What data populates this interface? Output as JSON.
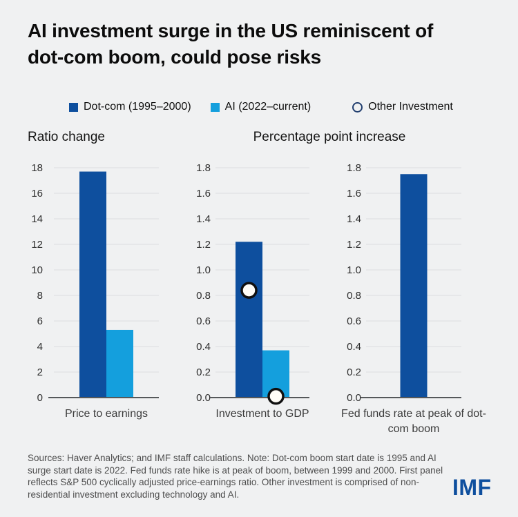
{
  "page": {
    "title_line1": "AI investment surge in the US reminiscent of",
    "title_line2": "dot-com boom, could pose risks",
    "footnote": "Sources: Haver Analytics; and IMF staff calculations. Note: Dot-com boom start date is 1995 and AI surge start date is 2022. Fed funds rate hike is at peak of boom, between 1999 and 2000. First panel reflects S&P 500 cyclically adjusted price-earnings ratio. Other investment is comprised of non-residential investment excluding technology and AI.",
    "logo_text": "IMF"
  },
  "legend": {
    "items": [
      {
        "label": "Dot-com (1995–2000)",
        "swatch": "square",
        "color": "#0e4f9e"
      },
      {
        "label": "AI (2022–current)",
        "swatch": "square",
        "color": "#149fdd"
      },
      {
        "label": "Other Investment",
        "swatch": "circle-outline",
        "color": "#223f6f"
      }
    ]
  },
  "colors": {
    "background": "#f0f1f2",
    "dotcom_blue": "#0e4f9e",
    "ai_blue": "#149fdd",
    "gridline": "#dcdde0",
    "axis_line": "#55585a",
    "tick_text": "#2d2d2d",
    "marker_fill": "#fffdf7",
    "marker_stroke": "#101010",
    "logo_blue": "#0e4f9e"
  },
  "chart_data": [
    {
      "type": "bar",
      "title": "Ratio change",
      "xlabel": "Price to earnings",
      "ylim": [
        0,
        18
      ],
      "yticks": [
        0,
        2,
        4,
        6,
        8,
        10,
        12,
        14,
        16,
        18
      ],
      "ytick_labels": [
        "0",
        "2",
        "4",
        "6",
        "8",
        "10",
        "12",
        "14",
        "16",
        "18"
      ],
      "grid": true,
      "series": [
        {
          "name": "Dot-com (1995–2000)",
          "value": 17.7,
          "color": "#0e4f9e"
        },
        {
          "name": "AI (2022–current)",
          "value": 5.3,
          "color": "#149fdd"
        }
      ]
    },
    {
      "type": "bar",
      "title": "Percentage point increase",
      "xlabel": "Investment to GDP",
      "ylim": [
        0,
        1.8
      ],
      "yticks": [
        0,
        0.2,
        0.4,
        0.6,
        0.8,
        1.0,
        1.2,
        1.4,
        1.6,
        1.8
      ],
      "ytick_labels": [
        "0.0",
        "0.2",
        "0.4",
        "0.6",
        "0.8",
        "1.0",
        "1.2",
        "1.4",
        "1.6",
        "1.8"
      ],
      "grid": true,
      "series": [
        {
          "name": "Dot-com (1995–2000)",
          "value": 1.22,
          "color": "#0e4f9e"
        },
        {
          "name": "AI (2022–current)",
          "value": 0.37,
          "color": "#149fdd"
        }
      ],
      "markers": [
        {
          "name": "Other Investment",
          "value": 0.84,
          "on_series": 0
        },
        {
          "name": "Other Investment",
          "value": 0.01,
          "on_series": 1
        }
      ]
    },
    {
      "type": "bar",
      "title": "Percentage point increase",
      "xlabel": "Fed funds rate at peak of dot-com boom",
      "ylim": [
        0,
        1.8
      ],
      "yticks": [
        0,
        0.2,
        0.4,
        0.6,
        0.8,
        1.0,
        1.2,
        1.4,
        1.6,
        1.8
      ],
      "ytick_labels": [
        "0.0",
        "0.2",
        "0.4",
        "0.6",
        "0.8",
        "1.0",
        "1.2",
        "1.4",
        "1.6",
        "1.8"
      ],
      "grid": true,
      "series": [
        {
          "name": "Dot-com (1995–2000)",
          "value": 1.75,
          "color": "#0e4f9e"
        }
      ]
    }
  ]
}
